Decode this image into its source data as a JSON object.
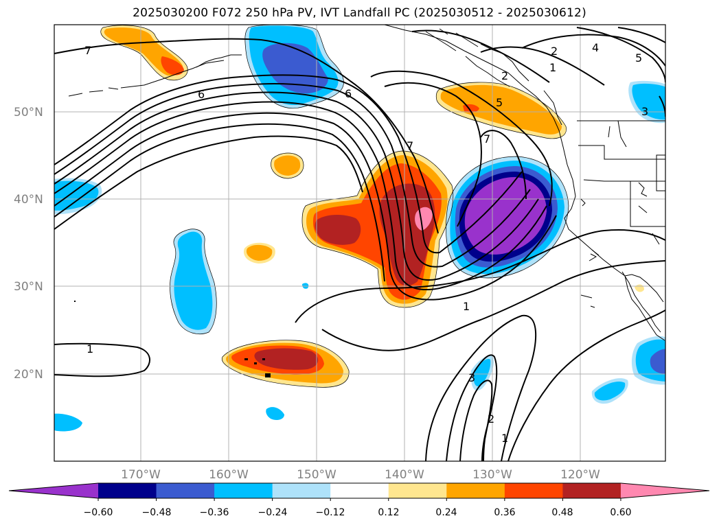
{
  "title": "2025030200 F072 250 hPa PV, IVT Landfall PC (2025030512 - 2025030612)",
  "map": {
    "lon_ticks": [
      "170°W",
      "160°W",
      "150°W",
      "140°W",
      "130°W",
      "120°W"
    ],
    "lat_ticks": [
      "50°N",
      "40°N",
      "30°N",
      "20°N"
    ],
    "contour_labels": [
      "7",
      "6",
      "6",
      "7",
      "7",
      "2",
      "4",
      "5",
      "1",
      "2",
      "5",
      "3",
      "1",
      "1",
      "3",
      "2",
      "1"
    ]
  },
  "colorbar": {
    "ticks": [
      "−0.60",
      "−0.48",
      "−0.36",
      "−0.24",
      "−0.12",
      "0.12",
      "0.24",
      "0.36",
      "0.48",
      "0.60"
    ],
    "colors": [
      "#9932cc",
      "#00008b",
      "#3b5bd0",
      "#00bfff",
      "#aee2fa",
      "#ffffff",
      "#ffe68f",
      "#ffa500",
      "#ff4500",
      "#b22222",
      "#ff88b0"
    ]
  }
}
